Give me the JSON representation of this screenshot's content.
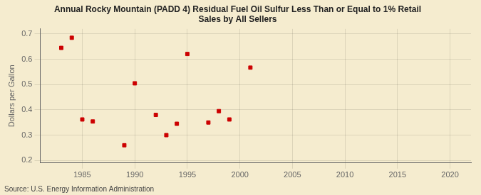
{
  "chart_data": {
    "type": "scatter",
    "title": "Annual Rocky Mountain (PADD 4) Residual Fuel Oil Sulfur Less Than or Equal to 1% Retail\nSales by All Sellers",
    "ylabel": "Dollars per Gallon",
    "annotations": [
      "Source: U.S. Energy Information Administration"
    ],
    "x": [
      1983,
      1984,
      1985,
      1986,
      1989,
      1990,
      1992,
      1993,
      1994,
      1995,
      1997,
      1998,
      1999,
      2001
    ],
    "values": [
      0.645,
      0.685,
      0.362,
      0.354,
      0.26,
      0.505,
      0.38,
      0.3,
      0.345,
      0.621,
      0.35,
      0.395,
      0.362,
      0.567
    ],
    "color": "#cc0000",
    "marker": "square",
    "xlim": [
      1981,
      2022
    ],
    "ylim": [
      0.19,
      0.72
    ],
    "xticks": [
      1985,
      1990,
      1995,
      2000,
      2005,
      2010,
      2015,
      2020
    ],
    "yticks": [
      0.2,
      0.3,
      0.4,
      0.5,
      0.6,
      0.7
    ],
    "grid": true
  }
}
